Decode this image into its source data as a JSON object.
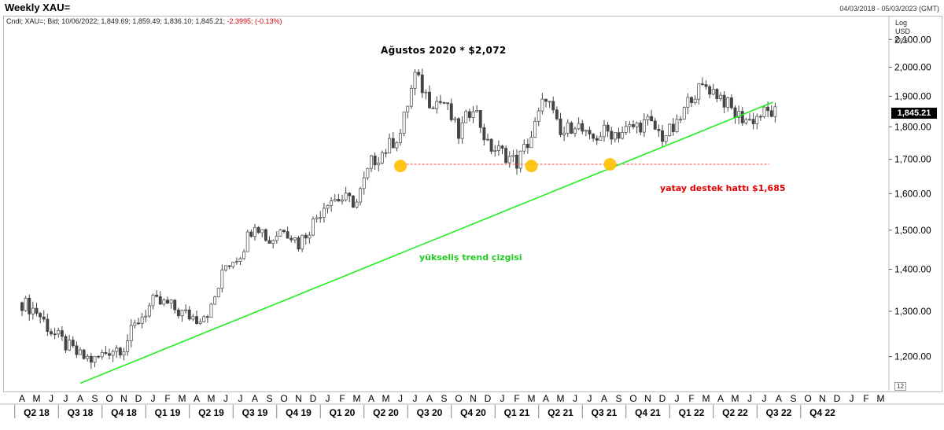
{
  "header": {
    "title": "Weekly XAU=",
    "date_range": "04/03/2018 - 05/03/2023 (GMT)"
  },
  "info_line": {
    "prefix": "Cndl; XAU=; Bid; 10/06/2022; 1,849.69; 1,859.49; 1,836.10; 1,845.21;",
    "change": "-2.3995; (-0.13%)"
  },
  "scale_options": [
    "Log",
    "USD",
    "Ozs"
  ],
  "last_price_label": "1,845.21",
  "corner_label": "12",
  "colors": {
    "candle": "#444444",
    "trend": "#22ee22",
    "support": "#ff4444",
    "marker": "#ffc000",
    "negative": "#d00000"
  },
  "chart_data": {
    "type": "candlestick",
    "scale": "log",
    "y_range": [
      1130,
      2190
    ],
    "y_ticks": [
      1200,
      1300,
      1400,
      1500,
      1600,
      1700,
      1800,
      1900,
      2000,
      2100
    ],
    "y_tick_labels": [
      "1,200.00",
      "1,300.00",
      "1,400.00",
      "1,500.00",
      "1,600.00",
      "1,700.00",
      "1,800.00",
      "1,900.00",
      "2,000.00",
      "2,100.00"
    ],
    "months": [
      "A",
      "M",
      "J",
      "J",
      "A",
      "S",
      "O",
      "N",
      "D",
      "J",
      "F",
      "M",
      "A",
      "M",
      "J",
      "J",
      "A",
      "S",
      "O",
      "N",
      "D",
      "J",
      "F",
      "M",
      "A",
      "M",
      "J",
      "J",
      "A",
      "S",
      "O",
      "N",
      "D",
      "J",
      "F",
      "M",
      "A",
      "M",
      "J",
      "J",
      "A",
      "S",
      "O",
      "N",
      "D",
      "J",
      "F",
      "M",
      "A",
      "M",
      "J",
      "J",
      "A",
      "S",
      "O",
      "N",
      "D",
      "J",
      "F",
      "M"
    ],
    "quarters": [
      "Q2 18",
      "Q3 18",
      "Q4 18",
      "Q1 19",
      "Q2 19",
      "Q3 19",
      "Q4 19",
      "Q1 20",
      "Q2 20",
      "Q3 20",
      "Q4 20",
      "Q1 21",
      "Q2 21",
      "Q3 21",
      "Q4 21",
      "Q1 22",
      "Q2 22",
      "Q3 22",
      "Q4 22"
    ],
    "monthly_closes": [
      1320,
      1300,
      1255,
      1225,
      1200,
      1192,
      1215,
      1222,
      1280,
      1320,
      1315,
      1295,
      1285,
      1305,
      1410,
      1440,
      1525,
      1470,
      1510,
      1465,
      1520,
      1585,
      1585,
      1575,
      1690,
      1730,
      1780,
      1970,
      1885,
      1880,
      1775,
      1875,
      1740,
      1720,
      1690,
      1770,
      1905,
      1770,
      1815,
      1755,
      1785,
      1780,
      1800,
      1815,
      1770,
      1800,
      1905,
      1935,
      1900,
      1840,
      1820,
      1845
    ],
    "annotations": {
      "peak": "Ağustos 2020 * $2,072",
      "support": "yatay destek hattı $1,685",
      "trend": "yükseliş trend çizgisi"
    },
    "support_level": 1685,
    "trendline": {
      "start": {
        "month_index": 4,
        "price": 1145
      },
      "end": {
        "month_index": 51.6,
        "price": 1880
      }
    },
    "touch_points": [
      {
        "month_index": 26.0,
        "price": 1680
      },
      {
        "month_index": 35.0,
        "price": 1680
      },
      {
        "month_index": 40.4,
        "price": 1685
      }
    ]
  }
}
